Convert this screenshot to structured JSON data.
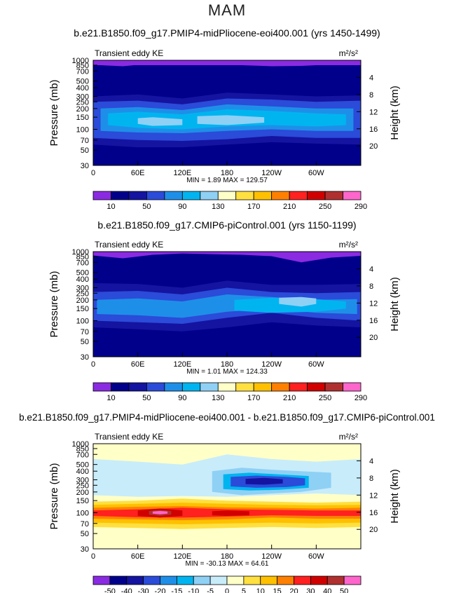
{
  "season": "MAM",
  "units": "m²/s²",
  "variable": "Transient eddy KE",
  "ylabel": "Pressure (mb)",
  "y2label": "Height (km)",
  "chart_data": [
    {
      "type": "heatmap",
      "title": "b.e21.B1850.f09_g17.PMIP4-midPliocene-eoi400.001 (yrs 1450-1499)",
      "subtitle": "Transient eddy KE",
      "units": "m²/s²",
      "xlabel": "",
      "ylabel": "Pressure (mb)",
      "y2label": "Height (km)",
      "xlim": [
        0,
        360
      ],
      "x_ticks": [
        "0",
        "60E",
        "120E",
        "180",
        "120W",
        "60W"
      ],
      "y_ticks": [
        "30",
        "50",
        "70",
        "100",
        "150",
        "200",
        "250",
        "300",
        "400",
        "500",
        "700",
        "850",
        "1000"
      ],
      "y2_ticks": [
        "20",
        "16",
        "12",
        "8",
        "4"
      ],
      "stats": "MIN =    1.89  MAX = 129.57",
      "levels": [
        "10",
        "50",
        "90",
        "130",
        "170",
        "210",
        "250",
        "290"
      ],
      "colors": [
        "#8a2be2",
        "#00008b",
        "#1414a0",
        "#2b4bd9",
        "#1e8fe8",
        "#00b4f0",
        "#8fd0f5",
        "#ffffc8",
        "#ffe040",
        "#ffc000",
        "#ff8000",
        "#ff2020",
        "#d00000",
        "#b03030",
        "#ff66cc"
      ],
      "contours": [
        {
          "cls": 0,
          "x": [
            0,
            360
          ],
          "ptop": [
            850,
            850
          ],
          "pbot": [
            1000,
            1000
          ]
        },
        {
          "cls": 1,
          "x": [
            0,
            360
          ],
          "ptop": [
            30,
            30
          ],
          "pbot": [
            850,
            850
          ]
        },
        {
          "cls": 2,
          "x": [
            0,
            60,
            120,
            180,
            240,
            300,
            360
          ],
          "ptop": [
            60,
            55,
            55,
            60,
            65,
            62,
            60
          ],
          "pbot": [
            300,
            320,
            280,
            340,
            320,
            300,
            310
          ]
        },
        {
          "cls": 3,
          "x": [
            0,
            60,
            120,
            180,
            240,
            300,
            360
          ],
          "ptop": [
            75,
            70,
            68,
            72,
            80,
            75,
            75
          ],
          "pbot": [
            250,
            260,
            230,
            280,
            270,
            250,
            260
          ]
        },
        {
          "cls": 4,
          "x": [
            10,
            60,
            120,
            180,
            240,
            300,
            350
          ],
          "ptop": [
            95,
            90,
            88,
            95,
            100,
            95,
            95
          ],
          "pbot": [
            200,
            210,
            190,
            230,
            215,
            200,
            200
          ]
        },
        {
          "cls": 5,
          "x": [
            20,
            60,
            120,
            180,
            240,
            300,
            340
          ],
          "ptop": [
            115,
            105,
            100,
            110,
            115,
            110,
            115
          ],
          "pbot": [
            170,
            180,
            165,
            195,
            185,
            170,
            165
          ]
        },
        {
          "cls": 6,
          "x": [
            60,
            80,
            120
          ],
          "ptop": [
            120,
            112,
            115
          ],
          "pbot": [
            145,
            150,
            140
          ]
        },
        {
          "cls": 6,
          "x": [
            140,
            180,
            230
          ],
          "ptop": [
            120,
            115,
            125
          ],
          "pbot": [
            155,
            160,
            150
          ]
        },
        {
          "cls": 0,
          "x": [
            0,
            40,
            80,
            120,
            160,
            200,
            240,
            280,
            320,
            360
          ],
          "ptop": [
            860,
            820,
            900,
            930,
            910,
            850,
            820,
            830,
            870,
            880
          ],
          "pbot": [
            1000,
            1000,
            1000,
            1000,
            1000,
            1000,
            1000,
            1000,
            1000,
            1000
          ]
        }
      ]
    },
    {
      "type": "heatmap",
      "title": "b.e21.B1850.f09_g17.CMIP6-piControl.001 (yrs 1150-1199)",
      "subtitle": "Transient eddy KE",
      "units": "m²/s²",
      "xlabel": "",
      "ylabel": "Pressure (mb)",
      "y2label": "Height (km)",
      "xlim": [
        0,
        360
      ],
      "x_ticks": [
        "0",
        "60E",
        "120E",
        "180",
        "120W",
        "60W"
      ],
      "y_ticks": [
        "30",
        "50",
        "70",
        "100",
        "150",
        "200",
        "250",
        "300",
        "400",
        "500",
        "700",
        "850",
        "1000"
      ],
      "y2_ticks": [
        "20",
        "16",
        "12",
        "8",
        "4"
      ],
      "stats": "MIN =    1.01  MAX = 124.33",
      "levels": [
        "10",
        "50",
        "90",
        "130",
        "170",
        "210",
        "250",
        "290"
      ],
      "colors": [
        "#8a2be2",
        "#00008b",
        "#1414a0",
        "#2b4bd9",
        "#1e8fe8",
        "#00b4f0",
        "#8fd0f5",
        "#ffffc8",
        "#ffe040",
        "#ffc000",
        "#ff8000",
        "#ff2020",
        "#d00000",
        "#b03030",
        "#ff66cc"
      ],
      "contours": [
        {
          "cls": 1,
          "x": [
            0,
            360
          ],
          "ptop": [
            30,
            30
          ],
          "pbot": [
            1000,
            1000
          ]
        },
        {
          "cls": 2,
          "x": [
            0,
            60,
            120,
            180,
            240,
            300,
            360
          ],
          "ptop": [
            80,
            75,
            70,
            80,
            95,
            85,
            80
          ],
          "pbot": [
            350,
            340,
            300,
            380,
            330,
            330,
            340
          ]
        },
        {
          "cls": 3,
          "x": [
            0,
            60,
            120,
            180,
            240,
            300,
            360
          ],
          "ptop": [
            100,
            95,
            90,
            110,
            130,
            110,
            100
          ],
          "pbot": [
            260,
            270,
            240,
            300,
            260,
            250,
            260
          ]
        },
        {
          "cls": 4,
          "x": [
            5,
            60,
            120,
            180,
            240,
            300,
            355
          ],
          "ptop": [
            125,
            120,
            110,
            135,
            150,
            130,
            125
          ],
          "pbot": [
            200,
            210,
            190,
            240,
            220,
            200,
            205
          ]
        },
        {
          "cls": 5,
          "x": [
            190,
            240,
            300,
            340
          ],
          "ptop": [
            140,
            130,
            135,
            150
          ],
          "pbot": [
            200,
            215,
            205,
            190
          ]
        },
        {
          "cls": 6,
          "x": [
            250,
            280,
            300
          ],
          "ptop": [
            175,
            160,
            175
          ],
          "pbot": [
            215,
            220,
            210
          ]
        },
        {
          "cls": 0,
          "x": [
            0,
            40,
            80,
            120,
            160,
            200,
            240,
            280,
            320,
            360
          ],
          "ptop": [
            880,
            800,
            900,
            940,
            920,
            900,
            860,
            700,
            820,
            870
          ],
          "pbot": [
            1000,
            1000,
            1000,
            1000,
            1000,
            1000,
            1000,
            1000,
            1000,
            1000
          ]
        }
      ]
    },
    {
      "type": "heatmap",
      "title": "b.e21.B1850.f09_g17.PMIP4-midPliocene-eoi400.001 - b.e21.B1850.f09_g17.CMIP6-piControl.001",
      "subtitle": "Transient eddy KE",
      "units": "m²/s²",
      "xlabel": "",
      "ylabel": "Pressure (mb)",
      "y2label": "Height (km)",
      "xlim": [
        0,
        360
      ],
      "x_ticks": [
        "0",
        "60E",
        "120E",
        "180",
        "120W",
        "60W"
      ],
      "y_ticks": [
        "30",
        "50",
        "70",
        "100",
        "150",
        "200",
        "250",
        "300",
        "400",
        "500",
        "700",
        "850",
        "1000"
      ],
      "y2_ticks": [
        "20",
        "16",
        "12",
        "8",
        "4"
      ],
      "stats": "MIN = -30.13  MAX =  64.61",
      "levels": [
        "-50",
        "-40",
        "-30",
        "-20",
        "-15",
        "-10",
        "-5",
        "0",
        "5",
        "10",
        "15",
        "20",
        "30",
        "40",
        "50"
      ],
      "colors": [
        "#8a2be2",
        "#00008b",
        "#1414a0",
        "#2b4bd9",
        "#1e8fe8",
        "#00b4f0",
        "#8fd0f5",
        "#c8ecfa",
        "#ffffc8",
        "#ffe040",
        "#ffc000",
        "#ff8000",
        "#ff2020",
        "#d00000",
        "#b03030",
        "#ff66cc"
      ],
      "contours": [
        {
          "cls": 8,
          "x": [
            0,
            360
          ],
          "ptop": [
            30,
            30
          ],
          "pbot": [
            1000,
            1000
          ]
        },
        {
          "cls": 9,
          "x": [
            0,
            60,
            120,
            180,
            240,
            300,
            360
          ],
          "ptop": [
            62,
            60,
            58,
            60,
            62,
            60,
            62
          ],
          "pbot": [
            145,
            150,
            160,
            150,
            145,
            140,
            145
          ]
        },
        {
          "cls": 10,
          "x": [
            0,
            60,
            120,
            180,
            240,
            300,
            360
          ],
          "ptop": [
            72,
            70,
            68,
            70,
            72,
            70,
            72
          ],
          "pbot": [
            130,
            135,
            140,
            135,
            130,
            128,
            130
          ]
        },
        {
          "cls": 11,
          "x": [
            0,
            60,
            120,
            180,
            240,
            300,
            360
          ],
          "ptop": [
            82,
            80,
            78,
            80,
            85,
            82,
            82
          ],
          "pbot": [
            118,
            122,
            125,
            120,
            118,
            115,
            118
          ]
        },
        {
          "cls": 12,
          "x": [
            0,
            60,
            120,
            180,
            240,
            300,
            360
          ],
          "ptop": [
            90,
            86,
            85,
            88,
            92,
            90,
            90
          ],
          "pbot": [
            108,
            112,
            118,
            112,
            110,
            108,
            108
          ]
        },
        {
          "cls": 13,
          "x": [
            60,
            90,
            120
          ],
          "ptop": [
            90,
            85,
            90
          ],
          "pbot": [
            108,
            115,
            108
          ]
        },
        {
          "cls": 13,
          "x": [
            160,
            180,
            210
          ],
          "ptop": [
            92,
            90,
            92
          ],
          "pbot": [
            105,
            108,
            105
          ]
        },
        {
          "cls": 14,
          "x": [
            75,
            90,
            105
          ],
          "ptop": [
            94,
            90,
            94
          ],
          "pbot": [
            106,
            110,
            106
          ]
        },
        {
          "cls": 15,
          "x": [
            80,
            90,
            100
          ],
          "ptop": [
            97,
            95,
            97
          ],
          "pbot": [
            104,
            106,
            104
          ]
        },
        {
          "cls": 7,
          "x": [
            0,
            60,
            120,
            180,
            240,
            300,
            360
          ],
          "ptop": [
            180,
            170,
            175,
            170,
            180,
            190,
            180
          ],
          "pbot": [
            600,
            550,
            500,
            700,
            600,
            550,
            600
          ]
        },
        {
          "cls": 6,
          "x": [
            160,
            200,
            240,
            280,
            320
          ],
          "ptop": [
            200,
            180,
            190,
            200,
            230
          ],
          "pbot": [
            400,
            450,
            420,
            400,
            380
          ]
        },
        {
          "cls": 5,
          "x": [
            175,
            210,
            250,
            290
          ],
          "ptop": [
            220,
            210,
            215,
            230
          ],
          "pbot": [
            360,
            380,
            360,
            340
          ]
        },
        {
          "cls": 3,
          "x": [
            185,
            220,
            260,
            285
          ],
          "ptop": [
            240,
            230,
            235,
            250
          ],
          "pbot": [
            330,
            345,
            330,
            315
          ]
        },
        {
          "cls": 2,
          "x": [
            205,
            230,
            255
          ],
          "ptop": [
            260,
            255,
            265
          ],
          "pbot": [
            310,
            320,
            305
          ]
        }
      ]
    }
  ]
}
